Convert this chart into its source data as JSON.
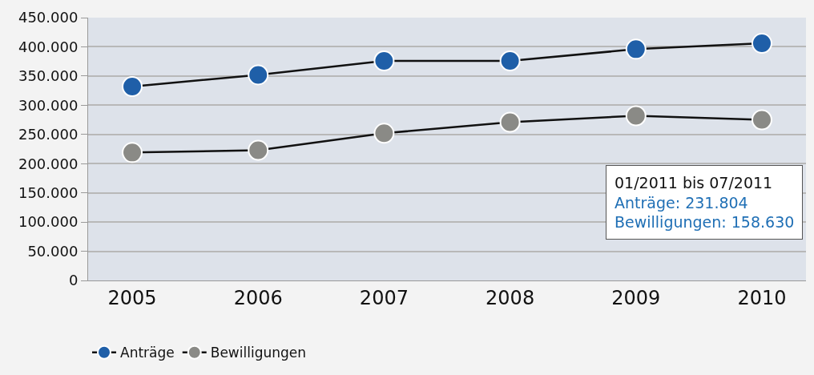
{
  "chart_data": {
    "type": "line",
    "categories": [
      "2005",
      "2006",
      "2007",
      "2008",
      "2009",
      "2010"
    ],
    "series": [
      {
        "name": "Anträge",
        "color": "#1f5fa8",
        "values": [
          332000,
          352000,
          376000,
          376000,
          396000,
          406000
        ]
      },
      {
        "name": "Bewilligungen",
        "color": "#8a8a86",
        "values": [
          219000,
          223000,
          252000,
          271000,
          282000,
          275000
        ]
      }
    ],
    "ylim": [
      0,
      450000
    ],
    "yticks": [
      0,
      {
        "value": 50000,
        "label": "50.000"
      },
      {
        "value": 100000,
        "label": "100.000"
      },
      {
        "value": 150000,
        "label": "150.000"
      },
      {
        "value": 200000,
        "label": "200.000"
      },
      {
        "value": 250000,
        "label": "250.000"
      },
      {
        "value": 300000,
        "label": "300.000"
      },
      {
        "value": 350000,
        "label": "350.000"
      },
      {
        "value": 400000,
        "label": "400.000"
      },
      {
        "value": 450000,
        "label": "450.000"
      }
    ],
    "annotations": [
      "01/2011 bis 07/2011",
      "Anträge: 231.804",
      "Bewilligungen: 158.630"
    ],
    "grid": "y",
    "legend": "bottom left",
    "marker": "circle",
    "line_style": "solid"
  }
}
